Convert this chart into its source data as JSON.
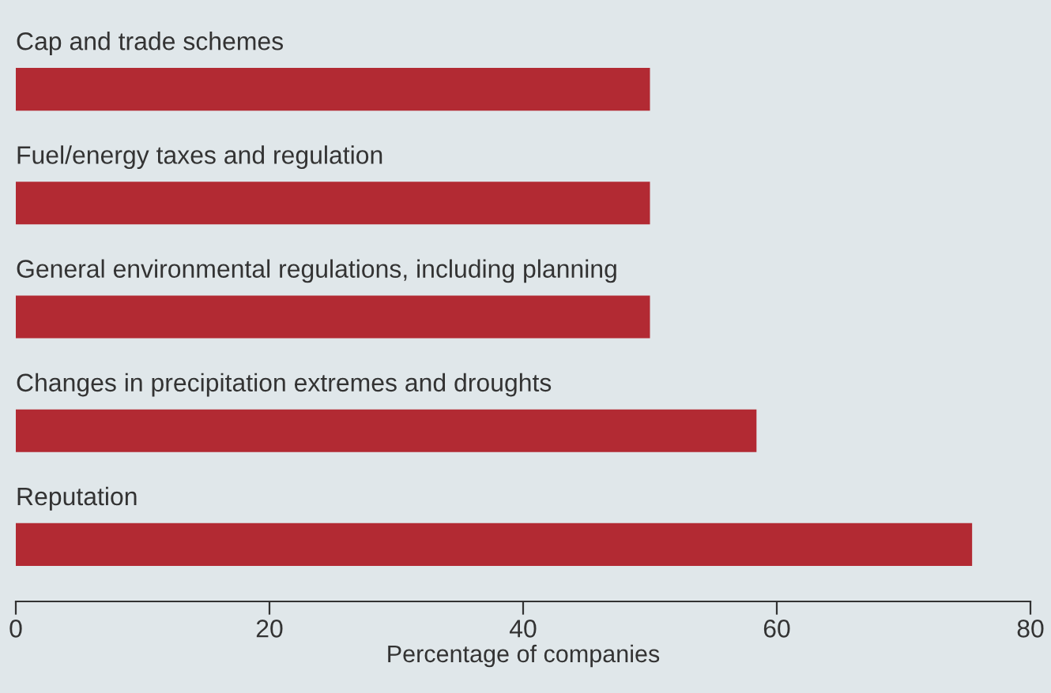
{
  "chart_data": {
    "type": "bar",
    "orientation": "horizontal",
    "xlabel": "Percentage of companies",
    "categories": [
      "Cap and trade schemes",
      "Fuel/energy taxes and regulation",
      "General environmental regulations, including planning",
      "Changes in precipitation extremes and droughts",
      "Reputation"
    ],
    "values": [
      50,
      50,
      50,
      58.4,
      75.4
    ],
    "color": "#b22a33",
    "xlim": [
      0,
      80
    ],
    "xticks": [
      0,
      20,
      40,
      60,
      80
    ],
    "grid": false,
    "legend": false
  }
}
